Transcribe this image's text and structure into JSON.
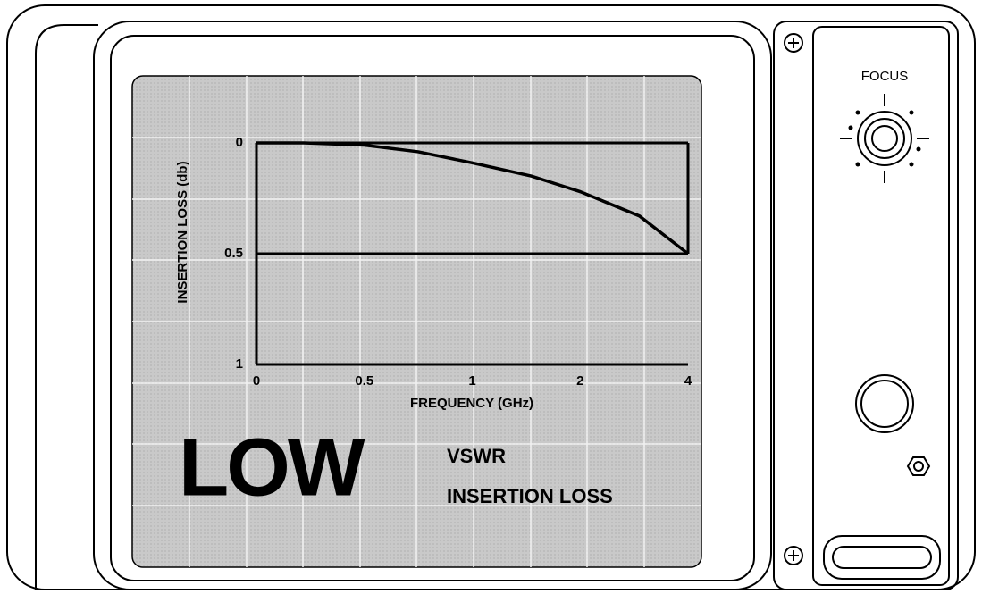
{
  "chart_data": {
    "type": "line",
    "y_label": "INSERTION LOSS (db)",
    "x_label": "FREQUENCY (GHz)",
    "x": [
      0,
      0.22,
      0.5,
      0.75,
      1,
      1.55,
      2,
      3.1,
      4
    ],
    "series": [
      {
        "values": [
          0,
          0,
          0.01,
          0.04,
          0.09,
          0.15,
          0.22,
          0.33,
          0.5
        ],
        "color": "#000000"
      }
    ],
    "xlim": [
      0,
      4
    ],
    "xticks": [
      0,
      0.5,
      1,
      2,
      4
    ],
    "ylim": [
      1,
      0
    ],
    "yticks": [
      0,
      0.5,
      1
    ]
  },
  "screen": {
    "headline": "LOW",
    "lines": [
      "VSWR",
      "INSERTION LOSS"
    ]
  },
  "panel": {
    "focus_label": "FOCUS"
  }
}
